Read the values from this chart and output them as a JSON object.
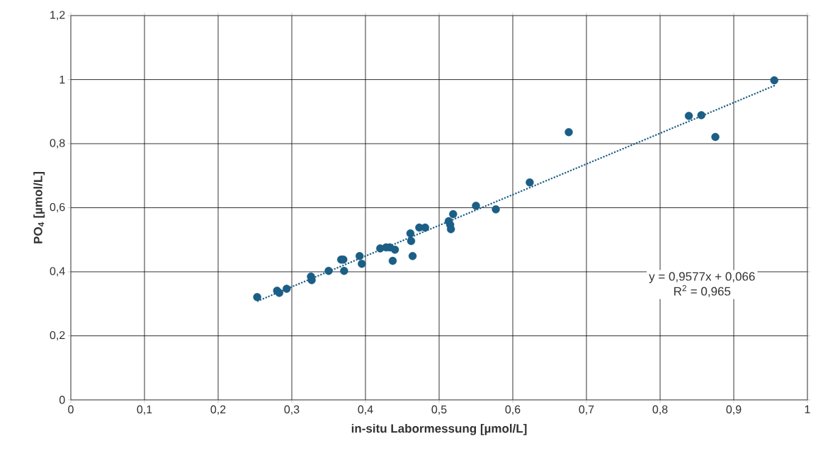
{
  "chart_data": {
    "type": "scatter",
    "xlabel": "in-situ Labormessung [µmol/L]",
    "ylabel": "PO$_{4}$ [µmol/L]",
    "xlim": [
      0,
      1
    ],
    "ylim": [
      0,
      1.2
    ],
    "xticks": [
      0,
      {
        "value": 0.1,
        "label": "0,1"
      },
      {
        "value": 0.2,
        "label": "0,2"
      },
      {
        "value": 0.3,
        "label": "0,3"
      },
      {
        "value": 0.4,
        "label": "0,4"
      },
      {
        "value": 0.5,
        "label": "0,5"
      },
      {
        "value": 0.6,
        "label": "0,6"
      },
      {
        "value": 0.7,
        "label": "0,7"
      },
      {
        "value": 0.8,
        "label": "0,8"
      },
      {
        "value": 0.9,
        "label": "0,9"
      },
      1
    ],
    "yticks": [
      0,
      {
        "value": 0.2,
        "label": "0,2"
      },
      {
        "value": 0.4,
        "label": "0,4"
      },
      {
        "value": 0.6,
        "label": "0,6"
      },
      {
        "value": 0.8,
        "label": "0,8"
      },
      1,
      {
        "value": 1.2,
        "label": "1,2"
      }
    ],
    "grid": true,
    "marker": "circle",
    "series": [
      {
        "color": "#1b5e86",
        "x": [
          0.253,
          0.28,
          0.283,
          0.293,
          0.326,
          0.327,
          0.35,
          0.371,
          0.367,
          0.37,
          0.392,
          0.395,
          0.42,
          0.428,
          0.433,
          0.44,
          0.437,
          0.461,
          0.462,
          0.464,
          0.473,
          0.481,
          0.513,
          0.515,
          0.516,
          0.519,
          0.55,
          0.577,
          0.623,
          0.676,
          0.839,
          0.856,
          0.875,
          0.955
        ],
        "values": [
          0.321,
          0.341,
          0.334,
          0.347,
          0.385,
          0.374,
          0.403,
          0.403,
          0.438,
          0.438,
          0.449,
          0.425,
          0.473,
          0.476,
          0.476,
          0.469,
          0.434,
          0.52,
          0.496,
          0.449,
          0.538,
          0.538,
          0.558,
          0.547,
          0.533,
          0.58,
          0.606,
          0.595,
          0.679,
          0.836,
          0.887,
          0.889,
          0.821,
          0.998
        ]
      },
      {
        "type": "line",
        "color": "#1b5e86",
        "line_style": "dotted",
        "marker": "none",
        "x": [
          0.253,
          0.957
        ],
        "values": [
          0.308,
          0.983
        ]
      }
    ],
    "annotations": [
      "y = 0,9577x + 0,066",
      "R$^{2}$ = 0,965"
    ]
  }
}
